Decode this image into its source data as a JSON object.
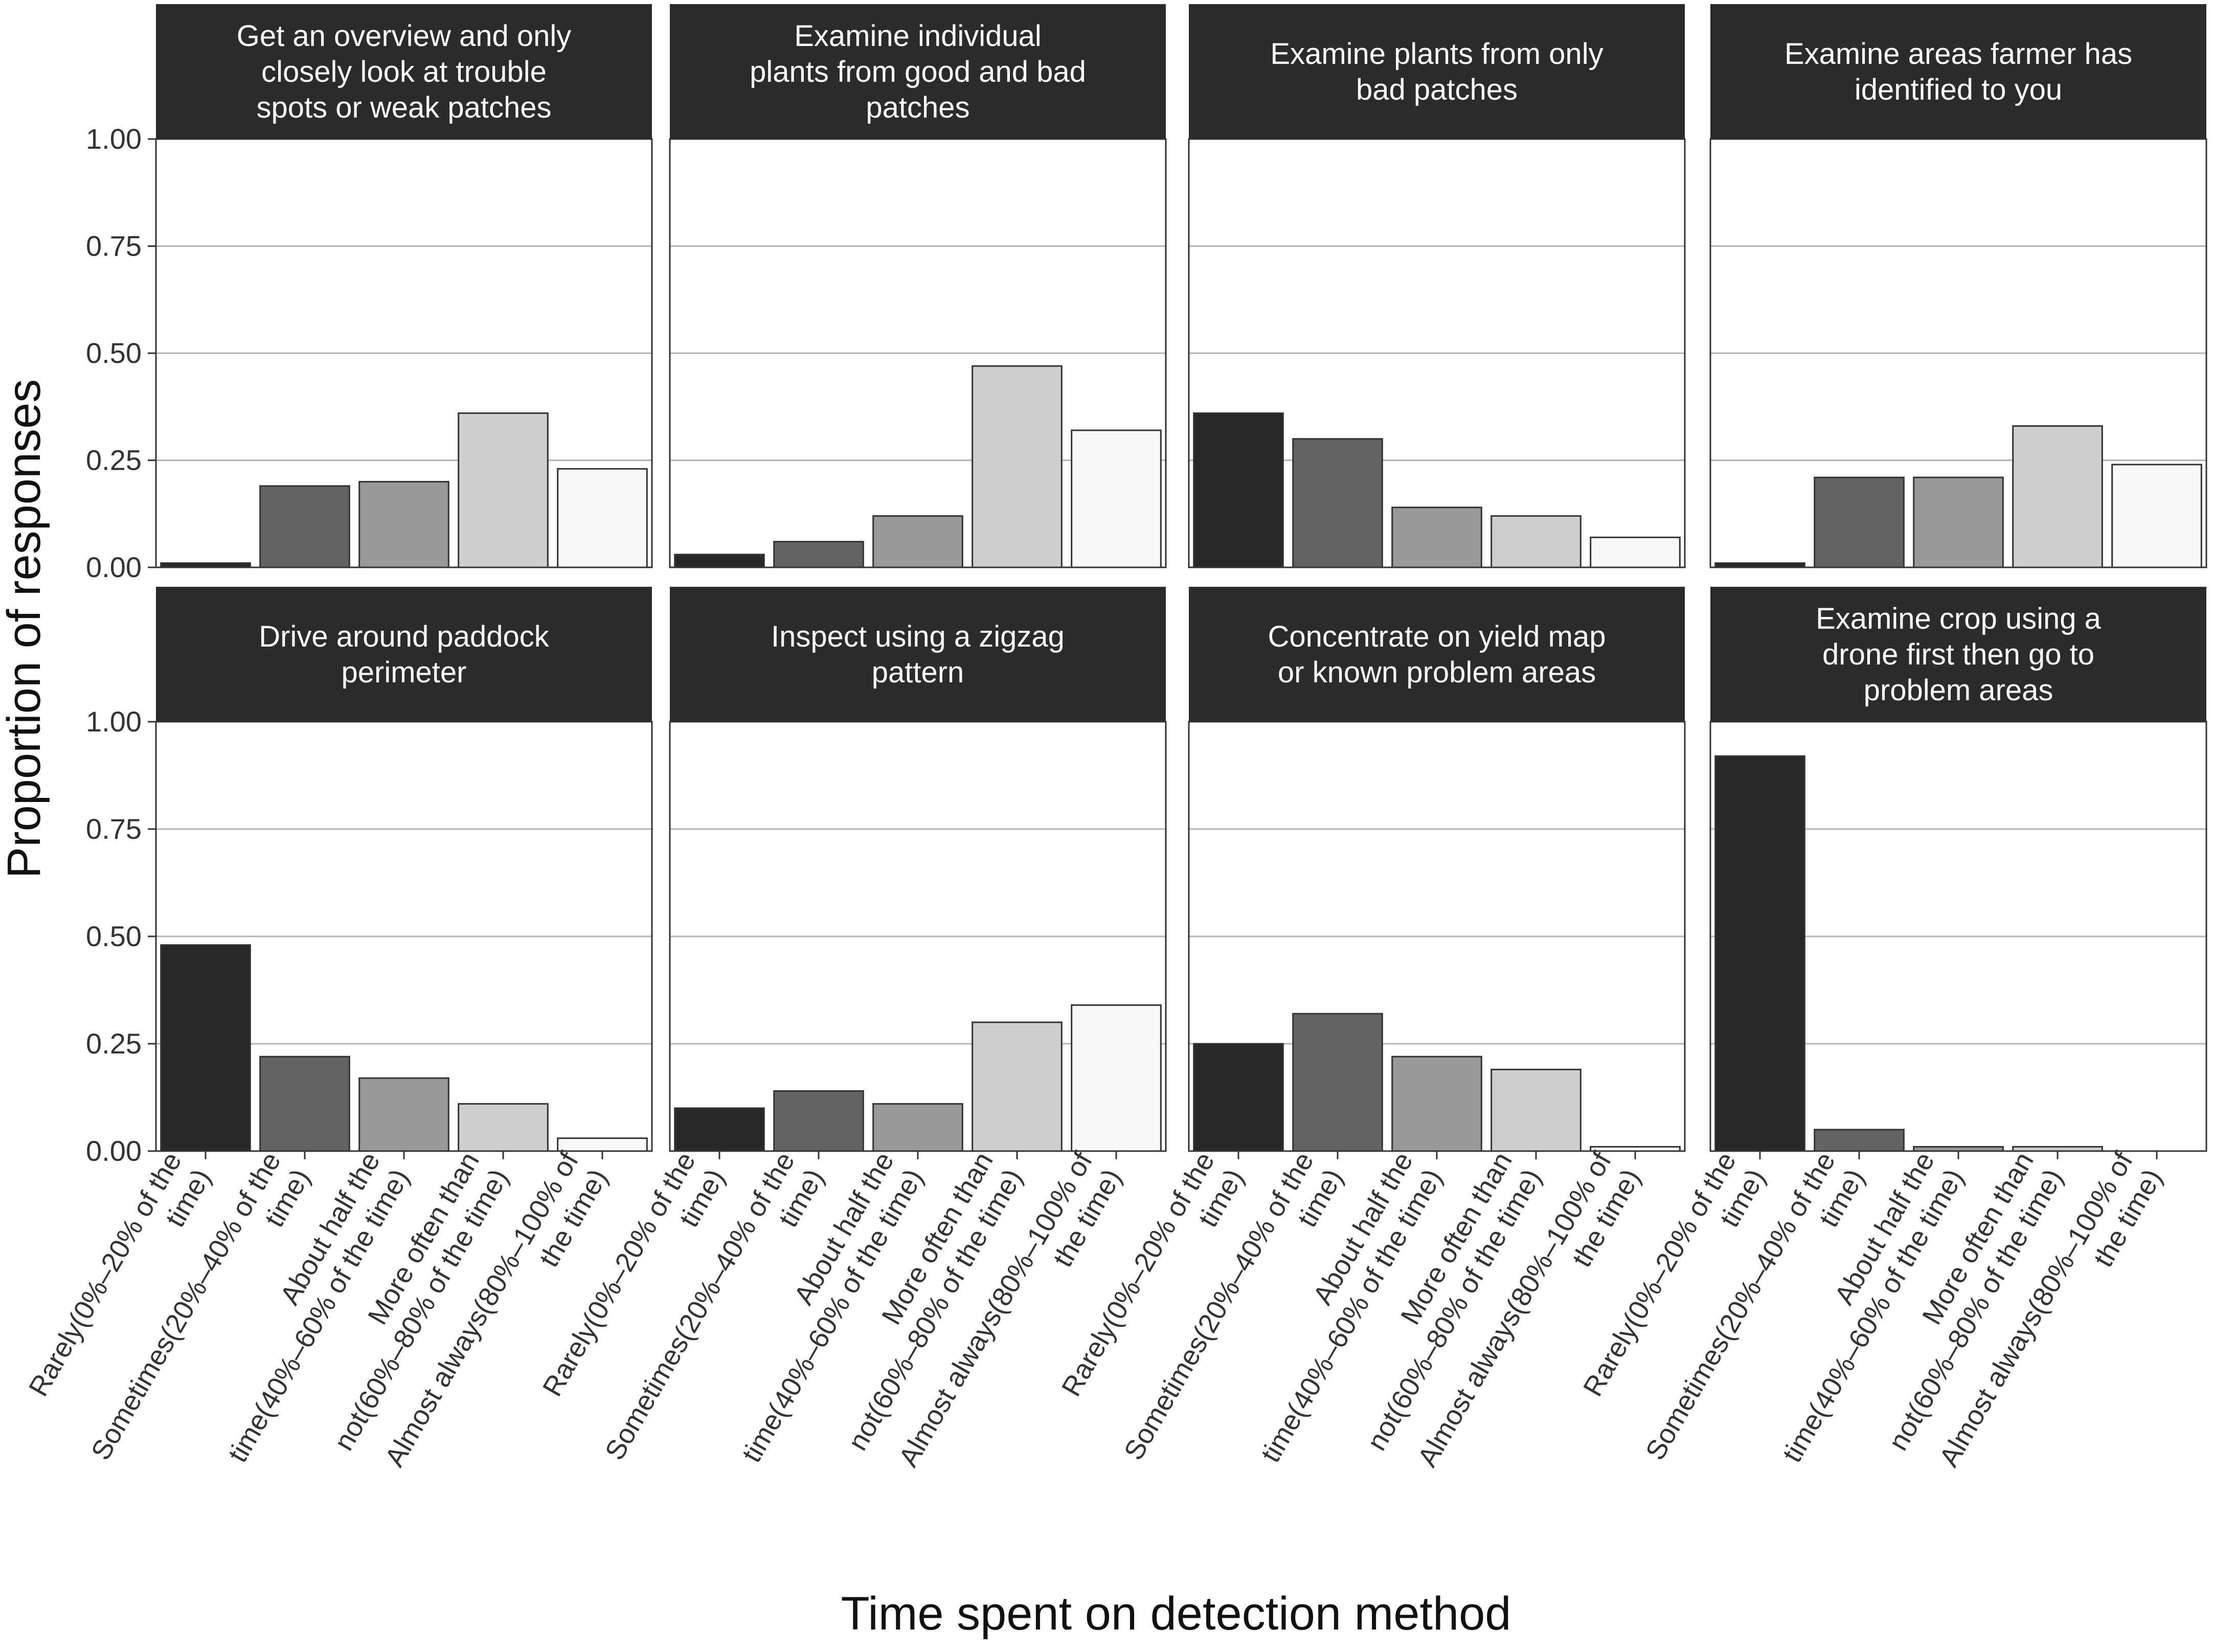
{
  "chart_data": {
    "type": "bar",
    "layout": "facet-grid 2x4",
    "ylabel": "Proportion of responses",
    "xlabel": "Time spent on detection method",
    "ylim": [
      0,
      1
    ],
    "yticks": [
      "0.00",
      "0.25",
      "0.50",
      "0.75",
      "1.00"
    ],
    "ytick_values": [
      0,
      0.25,
      0.5,
      0.75,
      1.0
    ],
    "grid": "horizontal major",
    "legend": "none",
    "categories": [
      [
        "Rarely(0%–20% of the",
        "time)"
      ],
      [
        "Sometimes(20%–40% of the",
        "time)"
      ],
      [
        "About half the",
        "time(40%–60% of the time)"
      ],
      [
        "More often than",
        "not(60%–80% of the time)"
      ],
      [
        "Almost always(80%–100% of",
        "the time)"
      ]
    ],
    "bar_colors": [
      "#282828",
      "#636363",
      "#999999",
      "#cfcfcf",
      "#f8f8f8"
    ],
    "colors": {
      "strip_background": "#2b2b2b",
      "strip_text": "#ffffff",
      "panel_border": "#333333",
      "grid": "#b3b3b3"
    },
    "panels": [
      {
        "title": [
          "Get an overview and only",
          "closely look at trouble",
          "spots or weak patches"
        ],
        "values": [
          0.01,
          0.19,
          0.2,
          0.36,
          0.23
        ]
      },
      {
        "title": [
          "Examine individual",
          "plants from good and bad",
          "patches"
        ],
        "values": [
          0.03,
          0.06,
          0.12,
          0.47,
          0.32
        ]
      },
      {
        "title": [
          "Examine plants from only",
          "bad patches"
        ],
        "values": [
          0.36,
          0.3,
          0.14,
          0.12,
          0.07
        ]
      },
      {
        "title": [
          "Examine areas farmer has",
          "identified to you"
        ],
        "values": [
          0.01,
          0.21,
          0.21,
          0.33,
          0.24
        ]
      },
      {
        "title": [
          "Drive around paddock",
          "perimeter"
        ],
        "values": [
          0.48,
          0.22,
          0.17,
          0.11,
          0.03
        ]
      },
      {
        "title": [
          "Inspect using a zigzag",
          "pattern"
        ],
        "values": [
          0.1,
          0.14,
          0.11,
          0.3,
          0.34
        ]
      },
      {
        "title": [
          "Concentrate on yield map",
          "or known problem areas"
        ],
        "values": [
          0.25,
          0.32,
          0.22,
          0.19,
          0.01
        ]
      },
      {
        "title": [
          "Examine crop using a",
          "drone first then go to",
          "problem areas"
        ],
        "values": [
          0.92,
          0.05,
          0.01,
          0.01,
          0.0
        ]
      }
    ]
  }
}
